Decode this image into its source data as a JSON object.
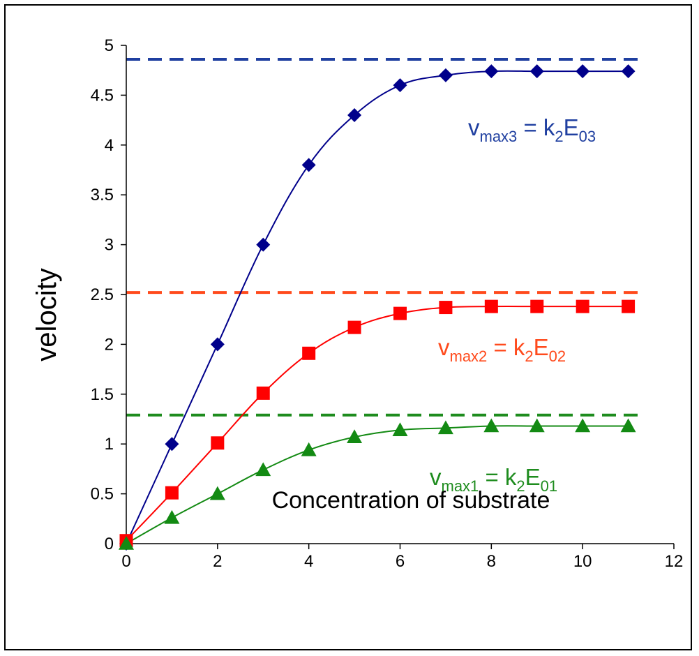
{
  "chart_data": {
    "type": "line",
    "xlabel": "Concentration of substrate",
    "ylabel": "velocity",
    "xlim": [
      0,
      12
    ],
    "ylim": [
      0,
      5
    ],
    "xticks": [
      "0",
      "2",
      "4",
      "6",
      "8",
      "10",
      "12"
    ],
    "yticks": [
      "0",
      "0.5",
      "1",
      "1.5",
      "2",
      "2.5",
      "3",
      "3.5",
      "4",
      "4.5",
      "5"
    ],
    "grid": false,
    "x": [
      0,
      1,
      2,
      3,
      4,
      5,
      6,
      7,
      8,
      9,
      10,
      11
    ],
    "series": [
      {
        "key": "s3",
        "color": "#00008B",
        "marker": "diamond",
        "values": [
          0,
          1.0,
          2.0,
          3.0,
          3.8,
          4.3,
          4.6,
          4.7,
          4.74,
          4.74,
          4.74,
          4.74
        ],
        "vmax_line": 4.86,
        "vmax_color": "#1F3FA0",
        "annotation": {
          "v": "v",
          "v_sub": "max3",
          "eq": " = k",
          "k_sub": "2",
          "E": "E",
          "E_sub": "03"
        }
      },
      {
        "key": "s2",
        "color": "#FF0000",
        "marker": "square",
        "values": [
          0.03,
          0.51,
          1.01,
          1.51,
          1.91,
          2.17,
          2.31,
          2.37,
          2.38,
          2.38,
          2.38,
          2.38
        ],
        "vmax_line": 2.52,
        "vmax_color": "#FF4A1C",
        "annotation": {
          "v": "v",
          "v_sub": "max2",
          "eq": " = k",
          "k_sub": "2",
          "E": "E",
          "E_sub": "02"
        }
      },
      {
        "key": "s1",
        "color": "#138A13",
        "marker": "triangle",
        "values": [
          0,
          0.26,
          0.5,
          0.74,
          0.94,
          1.07,
          1.14,
          1.16,
          1.18,
          1.18,
          1.18,
          1.18
        ],
        "vmax_line": 1.29,
        "vmax_color": "#1E8C1E",
        "annotation": {
          "v": "v",
          "v_sub": "max1",
          "eq": " = k",
          "k_sub": "2",
          "E": "E",
          "E_sub": "01"
        }
      }
    ]
  }
}
